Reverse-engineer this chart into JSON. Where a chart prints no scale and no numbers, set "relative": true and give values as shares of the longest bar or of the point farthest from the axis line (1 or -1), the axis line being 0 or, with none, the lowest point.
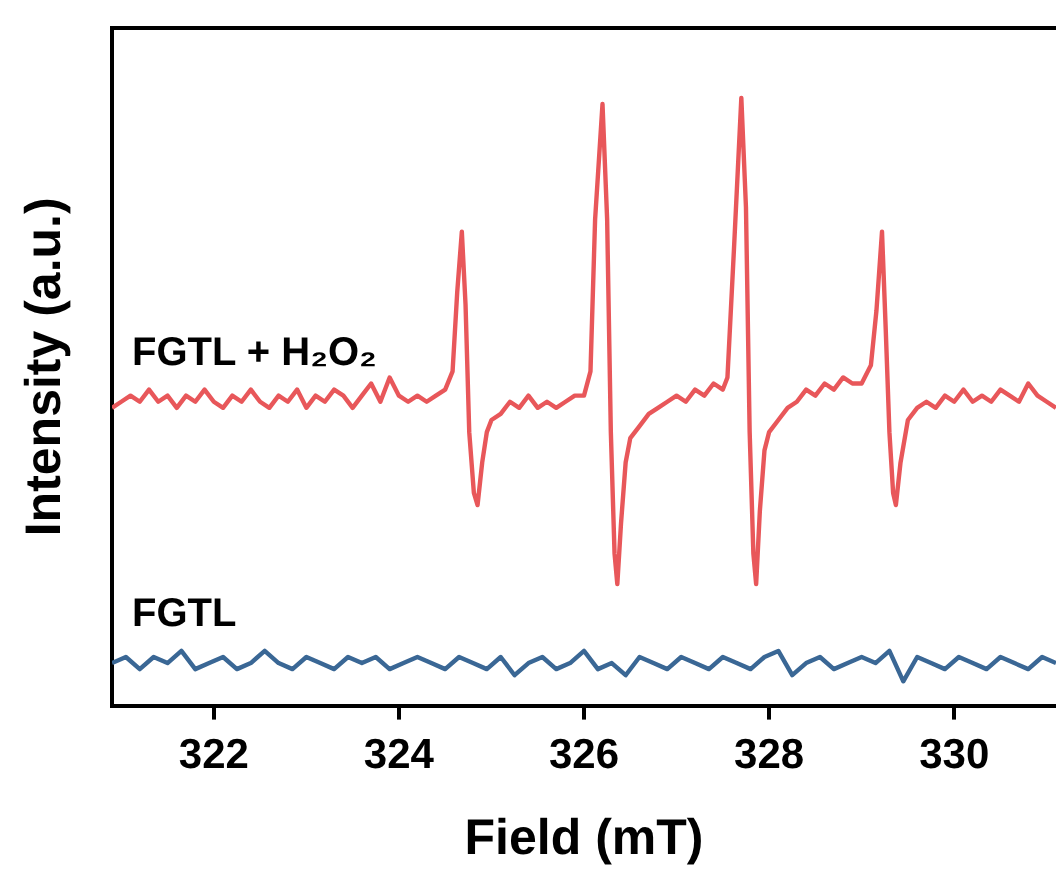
{
  "chart_data": {
    "type": "line",
    "xlabel": "Field (mT)",
    "ylabel": "Intensity (a.u.)",
    "relative": true,
    "xlim": [
      320.9,
      331.1
    ],
    "xticks": [
      322,
      324,
      326,
      328,
      330
    ],
    "grid": false,
    "legend": false,
    "marker": "none",
    "series": [
      {
        "name": "FGTL + H₂O₂",
        "color": "#e8575a",
        "x": [
          320.9,
          321.0,
          321.1,
          321.2,
          321.3,
          321.4,
          321.5,
          321.6,
          321.7,
          321.8,
          321.9,
          322.0,
          322.1,
          322.2,
          322.3,
          322.4,
          322.5,
          322.6,
          322.7,
          322.8,
          322.9,
          323.0,
          323.1,
          323.2,
          323.3,
          323.4,
          323.5,
          323.6,
          323.7,
          323.8,
          323.9,
          324.0,
          324.1,
          324.2,
          324.3,
          324.4,
          324.5,
          324.58,
          324.63,
          324.68,
          324.72,
          324.76,
          324.81,
          324.85,
          324.9,
          324.95,
          325.0,
          325.1,
          325.2,
          325.3,
          325.4,
          325.5,
          325.6,
          325.7,
          325.8,
          325.9,
          326.0,
          326.07,
          326.12,
          326.2,
          326.25,
          326.29,
          326.33,
          326.36,
          326.4,
          326.45,
          326.5,
          326.6,
          326.7,
          326.8,
          326.9,
          327.0,
          327.1,
          327.2,
          327.3,
          327.4,
          327.5,
          327.55,
          327.62,
          327.7,
          327.75,
          327.79,
          327.83,
          327.86,
          327.9,
          327.95,
          328.0,
          328.1,
          328.2,
          328.3,
          328.4,
          328.5,
          328.6,
          328.7,
          328.8,
          328.9,
          329.0,
          329.1,
          329.16,
          329.22,
          329.26,
          329.3,
          329.34,
          329.37,
          329.42,
          329.5,
          329.6,
          329.7,
          329.8,
          329.9,
          330.0,
          330.1,
          330.2,
          330.3,
          330.4,
          330.5,
          330.6,
          330.7,
          330.8,
          330.9,
          331.0,
          331.1
        ],
        "values": [
          0.49,
          0.5,
          0.51,
          0.5,
          0.52,
          0.5,
          0.51,
          0.49,
          0.51,
          0.5,
          0.52,
          0.5,
          0.49,
          0.51,
          0.5,
          0.52,
          0.5,
          0.49,
          0.51,
          0.5,
          0.52,
          0.49,
          0.51,
          0.5,
          0.52,
          0.51,
          0.49,
          0.51,
          0.53,
          0.5,
          0.54,
          0.51,
          0.5,
          0.51,
          0.5,
          0.51,
          0.52,
          0.55,
          0.68,
          0.78,
          0.66,
          0.45,
          0.35,
          0.33,
          0.4,
          0.45,
          0.47,
          0.48,
          0.5,
          0.49,
          0.51,
          0.49,
          0.5,
          0.49,
          0.5,
          0.51,
          0.51,
          0.55,
          0.8,
          0.99,
          0.8,
          0.45,
          0.25,
          0.2,
          0.3,
          0.4,
          0.44,
          0.46,
          0.48,
          0.49,
          0.5,
          0.51,
          0.5,
          0.52,
          0.51,
          0.53,
          0.52,
          0.54,
          0.75,
          1.0,
          0.82,
          0.45,
          0.25,
          0.2,
          0.32,
          0.42,
          0.45,
          0.47,
          0.49,
          0.5,
          0.52,
          0.51,
          0.53,
          0.52,
          0.54,
          0.53,
          0.53,
          0.56,
          0.65,
          0.78,
          0.62,
          0.45,
          0.35,
          0.33,
          0.4,
          0.47,
          0.49,
          0.5,
          0.49,
          0.51,
          0.5,
          0.52,
          0.5,
          0.51,
          0.5,
          0.52,
          0.51,
          0.5,
          0.53,
          0.51,
          0.5,
          0.49
        ]
      },
      {
        "name": "FGTL",
        "color": "#3a6795",
        "x": [
          320.9,
          321.05,
          321.2,
          321.35,
          321.5,
          321.65,
          321.8,
          321.95,
          322.1,
          322.25,
          322.4,
          322.55,
          322.7,
          322.85,
          323.0,
          323.15,
          323.3,
          323.45,
          323.6,
          323.75,
          323.9,
          324.05,
          324.2,
          324.35,
          324.5,
          324.65,
          324.8,
          324.95,
          325.1,
          325.25,
          325.4,
          325.55,
          325.7,
          325.85,
          326.0,
          326.15,
          326.3,
          326.45,
          326.6,
          326.75,
          326.9,
          327.05,
          327.2,
          327.35,
          327.5,
          327.65,
          327.8,
          327.95,
          328.1,
          328.25,
          328.4,
          328.55,
          328.7,
          328.85,
          329.0,
          329.15,
          329.3,
          329.45,
          329.6,
          329.75,
          329.9,
          330.05,
          330.2,
          330.35,
          330.5,
          330.65,
          330.8,
          330.95,
          331.1
        ],
        "values": [
          0.07,
          0.08,
          0.06,
          0.08,
          0.07,
          0.09,
          0.06,
          0.07,
          0.08,
          0.06,
          0.07,
          0.09,
          0.07,
          0.06,
          0.08,
          0.07,
          0.06,
          0.08,
          0.07,
          0.08,
          0.06,
          0.07,
          0.08,
          0.07,
          0.06,
          0.08,
          0.07,
          0.06,
          0.08,
          0.05,
          0.07,
          0.08,
          0.06,
          0.07,
          0.09,
          0.06,
          0.07,
          0.05,
          0.08,
          0.07,
          0.06,
          0.08,
          0.07,
          0.06,
          0.08,
          0.07,
          0.06,
          0.08,
          0.09,
          0.05,
          0.07,
          0.08,
          0.06,
          0.07,
          0.08,
          0.07,
          0.09,
          0.04,
          0.08,
          0.07,
          0.06,
          0.08,
          0.07,
          0.06,
          0.08,
          0.07,
          0.06,
          0.08,
          0.07
        ]
      }
    ]
  }
}
